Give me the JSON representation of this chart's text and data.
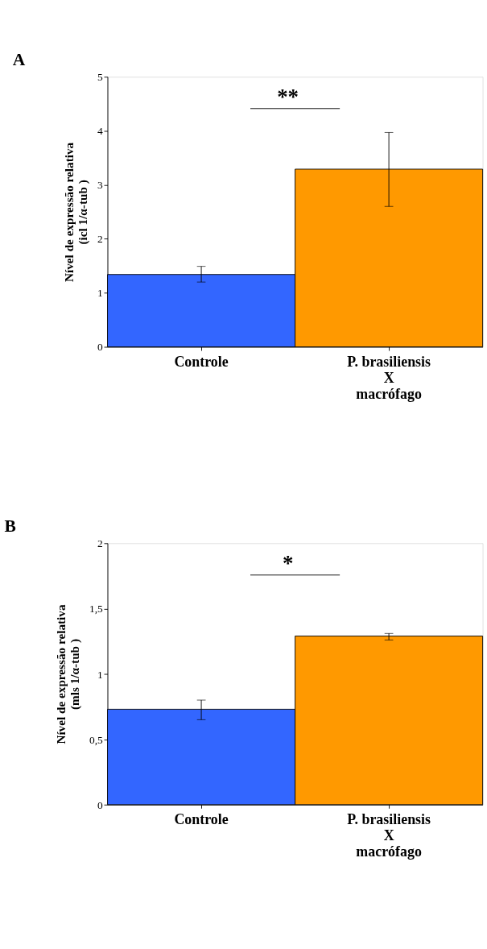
{
  "chart_data": [
    {
      "type": "bar",
      "title": "A",
      "ylabel": "Nível de expressão relativa\n(icl 1/α-tub )",
      "categories": [
        "Controle",
        "P. brasiliensis\nX\nmacrófago"
      ],
      "values": [
        1.34,
        3.29
      ],
      "colors": [
        "#3366ff",
        "#ff9900"
      ],
      "errors": [
        [
          1.2,
          1.49
        ],
        [
          2.6,
          3.97
        ]
      ],
      "ylim": [
        0,
        5
      ],
      "yticks": [
        0,
        1,
        2,
        3,
        4,
        5
      ],
      "annotations": [
        "**"
      ],
      "grid": false,
      "legend": false
    },
    {
      "type": "bar",
      "title": "B",
      "ylabel": "Nível de expressão relativa\n(mls 1/α-tub )",
      "categories": [
        "Controle",
        "P. brasiliensis\nX\nmacrófago"
      ],
      "values": [
        0.73,
        1.29
      ],
      "colors": [
        "#3366ff",
        "#ff9900"
      ],
      "errors": [
        [
          0.65,
          0.8
        ],
        [
          1.26,
          1.31
        ]
      ],
      "ylim": [
        0,
        2
      ],
      "yticks": [
        0,
        {
          "value": 0.5,
          "label": "0,5"
        },
        1,
        {
          "value": 1.5,
          "label": "1,5"
        },
        2
      ],
      "annotations": [
        "*"
      ],
      "grid": false,
      "legend": false
    }
  ]
}
